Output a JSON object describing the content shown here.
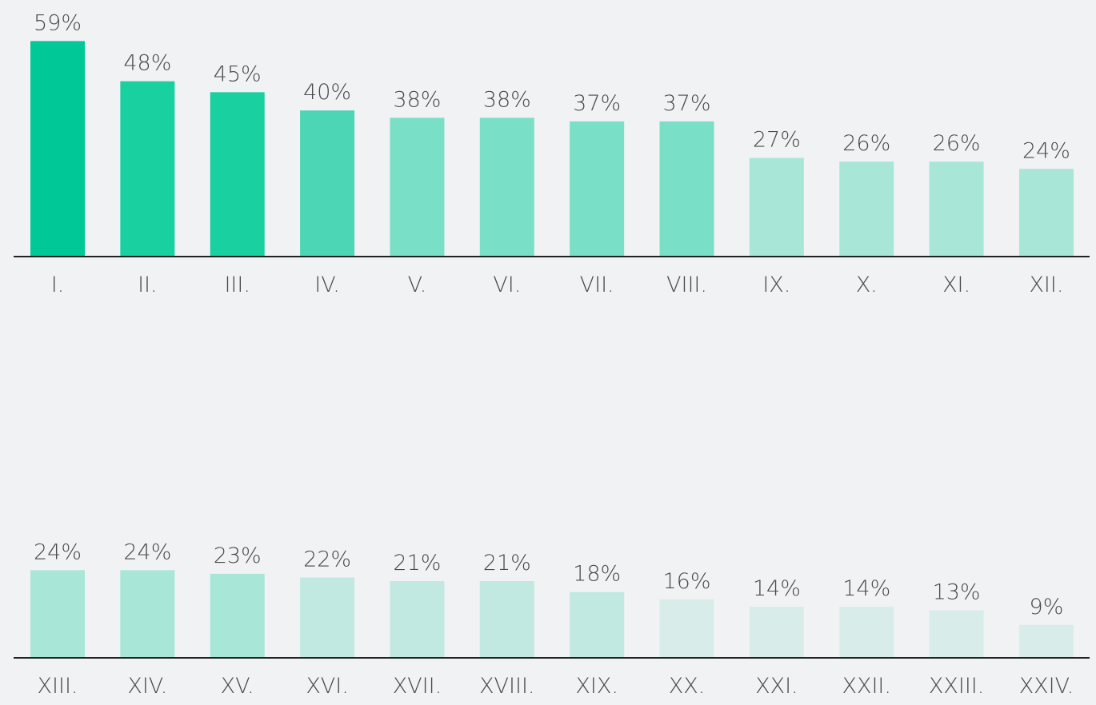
{
  "chart_data": [
    {
      "type": "bar",
      "categories": [
        "I.",
        "II.",
        "III.",
        "IV.",
        "V.",
        "VI.",
        "VII.",
        "VIII.",
        "IX.",
        "X.",
        "XI.",
        "XII."
      ],
      "values": [
        59,
        48,
        45,
        40,
        38,
        38,
        37,
        37,
        27,
        26,
        26,
        24
      ],
      "value_labels": [
        "59%",
        "48%",
        "45%",
        "40%",
        "38%",
        "38%",
        "37%",
        "37%",
        "27%",
        "26%",
        "26%",
        "24%"
      ],
      "colors": [
        "#00c896",
        "#19d0a0",
        "#19d0a0",
        "#4cd6b5",
        "#7adfc7",
        "#7adfc7",
        "#7adfc7",
        "#7adfc7",
        "#a8e6d8",
        "#a8e6d8",
        "#a8e6d8",
        "#a8e6d8"
      ]
    },
    {
      "type": "bar",
      "categories": [
        "XIII.",
        "XIV.",
        "XV.",
        "XVI.",
        "XVII.",
        "XVIII.",
        "XIX.",
        "XX.",
        "XXI.",
        "XXII.",
        "XXIII.",
        "XXIV."
      ],
      "values": [
        24,
        24,
        23,
        22,
        21,
        21,
        18,
        16,
        14,
        14,
        13,
        9
      ],
      "value_labels": [
        "24%",
        "24%",
        "23%",
        "22%",
        "21%",
        "21%",
        "18%",
        "16%",
        "14%",
        "14%",
        "13%",
        "9%"
      ],
      "colors": [
        "#a8e6d8",
        "#a8e6d8",
        "#a8e6d8",
        "#c1e9e1",
        "#c1e9e1",
        "#c1e9e1",
        "#c1e9e1",
        "#d8ede9",
        "#d8ede9",
        "#d8ede9",
        "#d8ede9",
        "#d8ede9"
      ]
    }
  ]
}
